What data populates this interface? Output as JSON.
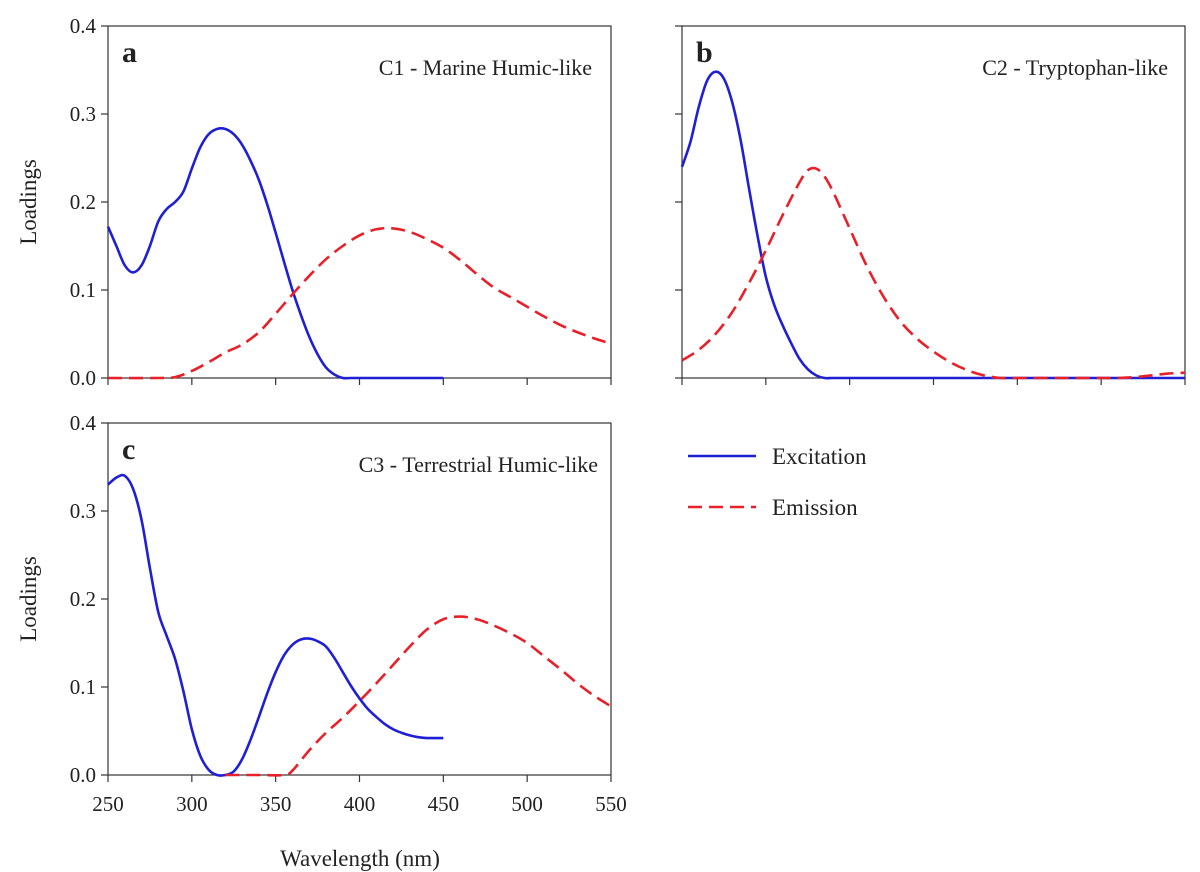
{
  "chart_data": [
    {
      "type": "line",
      "panel": "a",
      "title": "C1 - Marine Humic-like",
      "ylabel": "Loadings",
      "xlabel": "",
      "xlim": [
        250,
        550
      ],
      "ylim": [
        0,
        0.4
      ],
      "yticks": [
        "0.0",
        "0.1",
        "0.2",
        "0.3",
        "0.4"
      ],
      "xticks": [],
      "series": [
        {
          "name": "Excitation",
          "color": "#1f1fd6",
          "style": "solid",
          "x": [
            250,
            255,
            260,
            265,
            270,
            275,
            280,
            285,
            290,
            295,
            300,
            305,
            310,
            315,
            320,
            325,
            330,
            335,
            340,
            345,
            350,
            355,
            360,
            365,
            370,
            375,
            380,
            385,
            390,
            395,
            400,
            410,
            420,
            430,
            440,
            450
          ],
          "y": [
            0.172,
            0.15,
            0.128,
            0.12,
            0.128,
            0.15,
            0.178,
            0.192,
            0.2,
            0.212,
            0.238,
            0.262,
            0.277,
            0.283,
            0.283,
            0.277,
            0.265,
            0.247,
            0.225,
            0.197,
            0.165,
            0.132,
            0.1,
            0.072,
            0.047,
            0.027,
            0.012,
            0.004,
            0.0,
            0.0,
            0.0,
            0.0,
            0.0,
            0.0,
            0.0,
            0.0
          ]
        },
        {
          "name": "Emission",
          "color": "#e8202a",
          "style": "dashed",
          "x": [
            250,
            280,
            290,
            300,
            310,
            320,
            330,
            340,
            350,
            360,
            370,
            380,
            390,
            400,
            410,
            420,
            430,
            440,
            450,
            460,
            470,
            480,
            490,
            500,
            510,
            520,
            530,
            540,
            550
          ],
          "y": [
            0.0,
            0.0,
            0.001,
            0.008,
            0.018,
            0.029,
            0.038,
            0.052,
            0.073,
            0.095,
            0.116,
            0.135,
            0.15,
            0.162,
            0.169,
            0.17,
            0.166,
            0.158,
            0.148,
            0.134,
            0.118,
            0.103,
            0.092,
            0.081,
            0.07,
            0.06,
            0.052,
            0.045,
            0.039
          ]
        }
      ]
    },
    {
      "type": "line",
      "panel": "b",
      "title": "C2 - Tryptophan-like",
      "ylabel": "",
      "xlabel": "",
      "xlim": [
        250,
        550
      ],
      "ylim": [
        0,
        0.4
      ],
      "yticks": [],
      "xticks": [],
      "series": [
        {
          "name": "Excitation",
          "color": "#1f1fd6",
          "style": "solid",
          "x": [
            250,
            255,
            260,
            265,
            270,
            275,
            280,
            285,
            290,
            295,
            300,
            305,
            310,
            315,
            320,
            325,
            330,
            335,
            340,
            345,
            350,
            360,
            380,
            400,
            450,
            500,
            550
          ],
          "y": [
            0.24,
            0.268,
            0.308,
            0.338,
            0.348,
            0.34,
            0.313,
            0.27,
            0.215,
            0.162,
            0.115,
            0.083,
            0.06,
            0.04,
            0.022,
            0.01,
            0.003,
            0.0,
            0.0,
            0.0,
            0.0,
            0.0,
            0.0,
            0.0,
            0.0,
            0.0,
            0.0
          ]
        },
        {
          "name": "Emission",
          "color": "#e8202a",
          "style": "dashed",
          "x": [
            250,
            260,
            270,
            280,
            290,
            300,
            310,
            320,
            325,
            330,
            335,
            340,
            350,
            360,
            370,
            380,
            390,
            400,
            410,
            420,
            430,
            440,
            450,
            460,
            470,
            480,
            490,
            500,
            510,
            520,
            530,
            540,
            550
          ],
          "y": [
            0.02,
            0.032,
            0.05,
            0.075,
            0.108,
            0.145,
            0.185,
            0.222,
            0.236,
            0.238,
            0.229,
            0.212,
            0.17,
            0.128,
            0.093,
            0.065,
            0.045,
            0.03,
            0.018,
            0.009,
            0.003,
            0.0,
            0.0,
            0.0,
            0.0,
            0.0,
            0.0,
            0.0,
            0.0,
            0.001,
            0.003,
            0.005,
            0.006
          ]
        }
      ]
    },
    {
      "type": "line",
      "panel": "c",
      "title": "C3 - Terrestrial Humic-like",
      "ylabel": "Loadings",
      "xlabel": "Wavelength (nm)",
      "xlim": [
        250,
        550
      ],
      "ylim": [
        0,
        0.4
      ],
      "yticks": [
        "0.0",
        "0.1",
        "0.2",
        "0.3",
        "0.4"
      ],
      "xticks": [
        "250",
        "300",
        "350",
        "400",
        "450",
        "500",
        "550"
      ],
      "series": [
        {
          "name": "Excitation",
          "color": "#1f1fd6",
          "style": "solid",
          "x": [
            250,
            255,
            260,
            265,
            270,
            275,
            280,
            285,
            290,
            295,
            300,
            305,
            310,
            315,
            320,
            325,
            330,
            335,
            340,
            345,
            350,
            355,
            360,
            365,
            370,
            375,
            380,
            385,
            390,
            395,
            400,
            405,
            410,
            415,
            420,
            425,
            430,
            435,
            440,
            445,
            450
          ],
          "y": [
            0.33,
            0.338,
            0.34,
            0.325,
            0.29,
            0.235,
            0.185,
            0.158,
            0.132,
            0.095,
            0.052,
            0.022,
            0.006,
            0.0,
            0.0,
            0.004,
            0.018,
            0.04,
            0.066,
            0.093,
            0.117,
            0.136,
            0.148,
            0.154,
            0.155,
            0.152,
            0.146,
            0.133,
            0.117,
            0.101,
            0.087,
            0.075,
            0.066,
            0.058,
            0.052,
            0.048,
            0.045,
            0.043,
            0.042,
            0.042,
            0.042
          ]
        },
        {
          "name": "Emission",
          "color": "#e8202a",
          "style": "dashed",
          "x": [
            320,
            340,
            355,
            360,
            370,
            380,
            390,
            400,
            410,
            420,
            430,
            440,
            450,
            460,
            470,
            480,
            490,
            500,
            510,
            520,
            530,
            540,
            550
          ],
          "y": [
            0.0,
            0.0,
            0.0,
            0.005,
            0.028,
            0.048,
            0.065,
            0.084,
            0.104,
            0.125,
            0.146,
            0.165,
            0.177,
            0.18,
            0.177,
            0.17,
            0.161,
            0.15,
            0.135,
            0.12,
            0.104,
            0.09,
            0.078
          ]
        }
      ]
    }
  ],
  "legend": {
    "items": [
      {
        "label": "Excitation",
        "color": "#1f1fd6",
        "style": "solid"
      },
      {
        "label": "Emission",
        "color": "#e8202a",
        "style": "dashed"
      }
    ]
  }
}
